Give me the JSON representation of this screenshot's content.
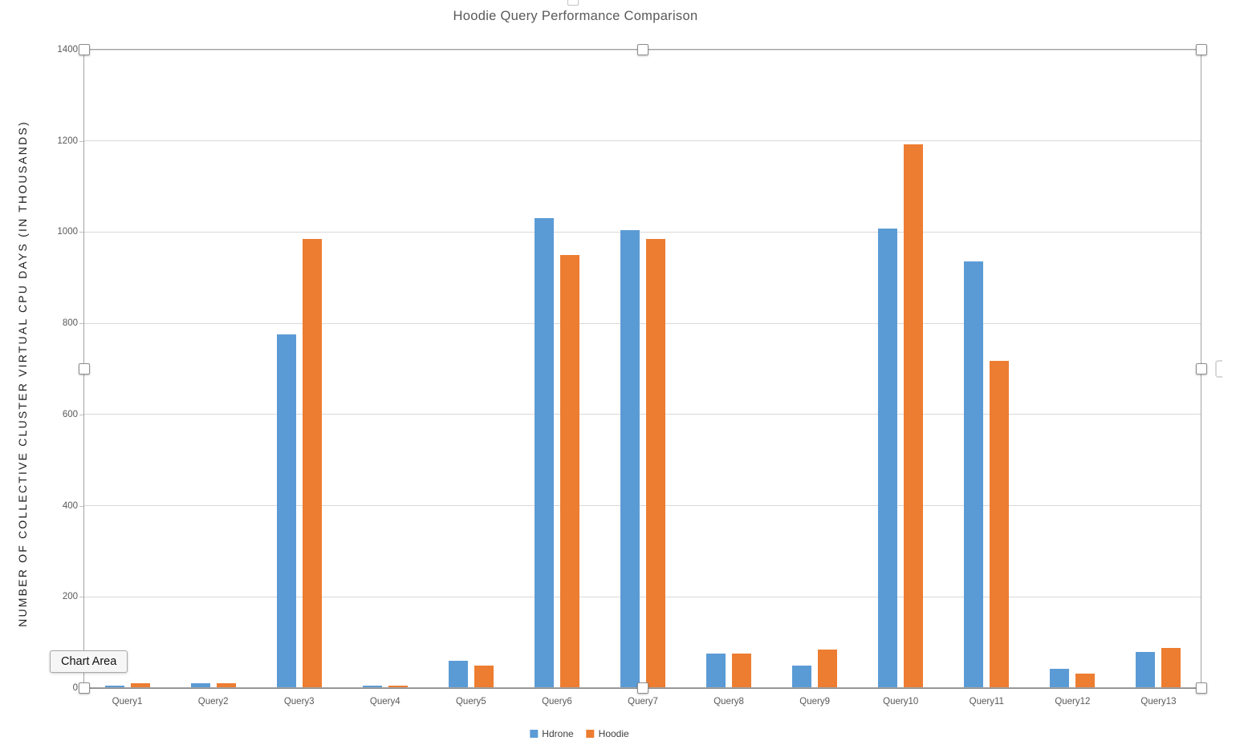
{
  "tooltip": {
    "label": "Chart Area"
  },
  "colors": {
    "series_blue": "#5B9BD5",
    "series_orange": "#ED7D31",
    "gridline": "#D9D9D9",
    "axis_line": "#8C8C8C",
    "tick_text": "#595959",
    "title_text": "#595959"
  },
  "chart_data": {
    "type": "bar",
    "title": "Hoodie Query Performance Comparison",
    "ylabel": "NUMBER OF COLLECTIVE CLUSTER VIRTUAL CPU DAYS (IN THOUSANDS)",
    "xlabel": "",
    "categories": [
      "Query1",
      "Query2",
      "Query3",
      "Query4",
      "Query5",
      "Query6",
      "Query7",
      "Query8",
      "Query9",
      "Query10",
      "Query11",
      "Query12",
      "Query13"
    ],
    "series": [
      {
        "name": "Hdrone",
        "color": "#5B9BD5",
        "values": [
          5,
          10,
          775,
          5,
          60,
          1030,
          1005,
          75,
          50,
          1007,
          935,
          42,
          80
        ]
      },
      {
        "name": "Hoodie",
        "color": "#ED7D31",
        "values": [
          10,
          10,
          985,
          5,
          50,
          950,
          985,
          75,
          85,
          1193,
          718,
          32,
          88
        ]
      }
    ],
    "ylim": [
      0,
      1400
    ],
    "yticks": [
      0,
      200,
      400,
      600,
      800,
      1000,
      1200,
      1400
    ],
    "grid": true,
    "legend_position": "bottom",
    "selection": "chart-area-selected"
  }
}
